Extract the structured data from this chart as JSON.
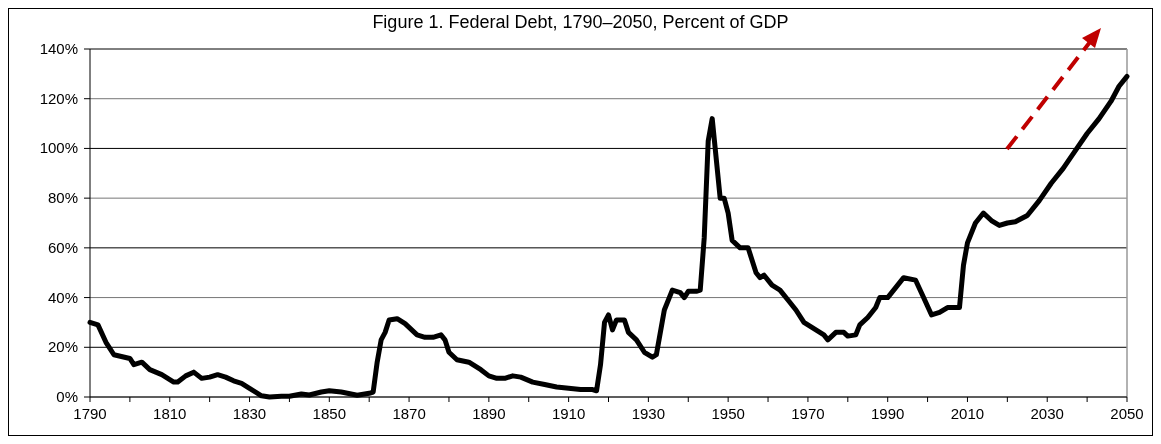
{
  "chart_data": {
    "type": "line",
    "title": "Figure 1. Federal Debt, 1790–2050, Percent of GDP",
    "x": [
      1790,
      1792,
      1794,
      1796,
      1800,
      1801,
      1803,
      1805,
      1808,
      1811,
      1812,
      1814,
      1816,
      1818,
      1820,
      1822,
      1824,
      1826,
      1828,
      1830,
      1833,
      1835,
      1838,
      1840,
      1843,
      1845,
      1848,
      1850,
      1853,
      1857,
      1860,
      1861,
      1862,
      1863,
      1864,
      1865,
      1867,
      1869,
      1872,
      1874,
      1876,
      1878,
      1879,
      1880,
      1882,
      1885,
      1888,
      1890,
      1892,
      1894,
      1896,
      1898,
      1901,
      1904,
      1907,
      1910,
      1913,
      1916,
      1917,
      1918,
      1919,
      1920,
      1921,
      1922,
      1924,
      1925,
      1927,
      1929,
      1931,
      1932,
      1934,
      1936,
      1938,
      1939,
      1940,
      1942,
      1943,
      1944,
      1945,
      1946,
      1948,
      1949,
      1950,
      1951,
      1953,
      1955,
      1957,
      1958,
      1959,
      1961,
      1963,
      1965,
      1967,
      1969,
      1971,
      1974,
      1975,
      1977,
      1979,
      1980,
      1982,
      1983,
      1985,
      1987,
      1988,
      1990,
      1992,
      1994,
      1997,
      1999,
      2001,
      2003,
      2005,
      2008,
      2009,
      2010,
      2012,
      2014,
      2016,
      2018,
      2020,
      2022,
      2025,
      2028,
      2031,
      2034,
      2037,
      2040,
      2043,
      2046,
      2048,
      2050
    ],
    "series": [
      {
        "color": "#000000",
        "values": [
          30,
          29,
          22,
          17,
          15.5,
          13,
          14,
          11,
          9,
          6,
          6,
          8.5,
          10,
          7.5,
          8,
          9,
          8,
          6.5,
          5.5,
          3.5,
          0.5,
          0,
          0.3,
          0.3,
          1.2,
          0.8,
          2,
          2.5,
          2,
          0.7,
          1.5,
          2,
          14,
          23,
          26,
          31,
          31.5,
          29.5,
          25,
          24,
          24,
          25,
          23,
          18,
          15,
          14,
          11,
          8.5,
          7.5,
          7.5,
          8.5,
          8,
          6,
          5,
          4,
          3.5,
          3,
          3,
          2.5,
          13,
          30,
          33,
          27,
          31,
          31,
          26,
          23,
          18,
          16,
          17,
          35,
          43,
          42,
          40,
          42.5,
          42.5,
          43,
          64,
          103,
          112,
          80,
          80,
          74,
          63,
          60,
          60,
          50,
          48,
          49,
          45,
          43,
          39,
          35,
          30,
          28,
          25,
          23,
          26,
          26,
          24.5,
          25,
          29,
          32,
          36,
          40,
          40,
          44,
          48,
          47,
          40,
          33,
          34,
          36,
          36,
          53,
          62,
          70,
          74,
          71,
          69,
          70,
          70.5,
          73,
          79,
          86,
          92,
          99,
          106,
          112,
          119,
          125,
          129
        ]
      }
    ],
    "xlim": [
      1790,
      2050
    ],
    "xticks": [
      1790,
      {
        "value": 1800,
        "label": null
      },
      1810,
      {
        "value": 1820,
        "label": null
      },
      1830,
      {
        "value": 1840,
        "label": null
      },
      1850,
      {
        "value": 1860,
        "label": null
      },
      1870,
      {
        "value": 1880,
        "label": null
      },
      1890,
      {
        "value": 1900,
        "label": null
      },
      1910,
      {
        "value": 1920,
        "label": null
      },
      1930,
      {
        "value": 1940,
        "label": null
      },
      1950,
      {
        "value": 1960,
        "label": null
      },
      1970,
      {
        "value": 1980,
        "label": null
      },
      1990,
      {
        "value": 2000,
        "label": null
      },
      2010,
      {
        "value": 2020,
        "label": null
      },
      2030,
      {
        "value": 2040,
        "label": null
      },
      2050
    ],
    "ylim": [
      0,
      140
    ],
    "yticks": [
      {
        "value": 0,
        "label": "0%"
      },
      {
        "value": 20,
        "label": "20%"
      },
      {
        "value": 40,
        "label": "40%"
      },
      {
        "value": 60,
        "label": "60%"
      },
      {
        "value": 80,
        "label": "80%"
      },
      {
        "value": 100,
        "label": "100%"
      },
      {
        "value": 120,
        "label": "120%"
      },
      {
        "value": 140,
        "label": "140%"
      }
    ],
    "grid": "y",
    "marker": "none",
    "line_style": "solid"
  }
}
